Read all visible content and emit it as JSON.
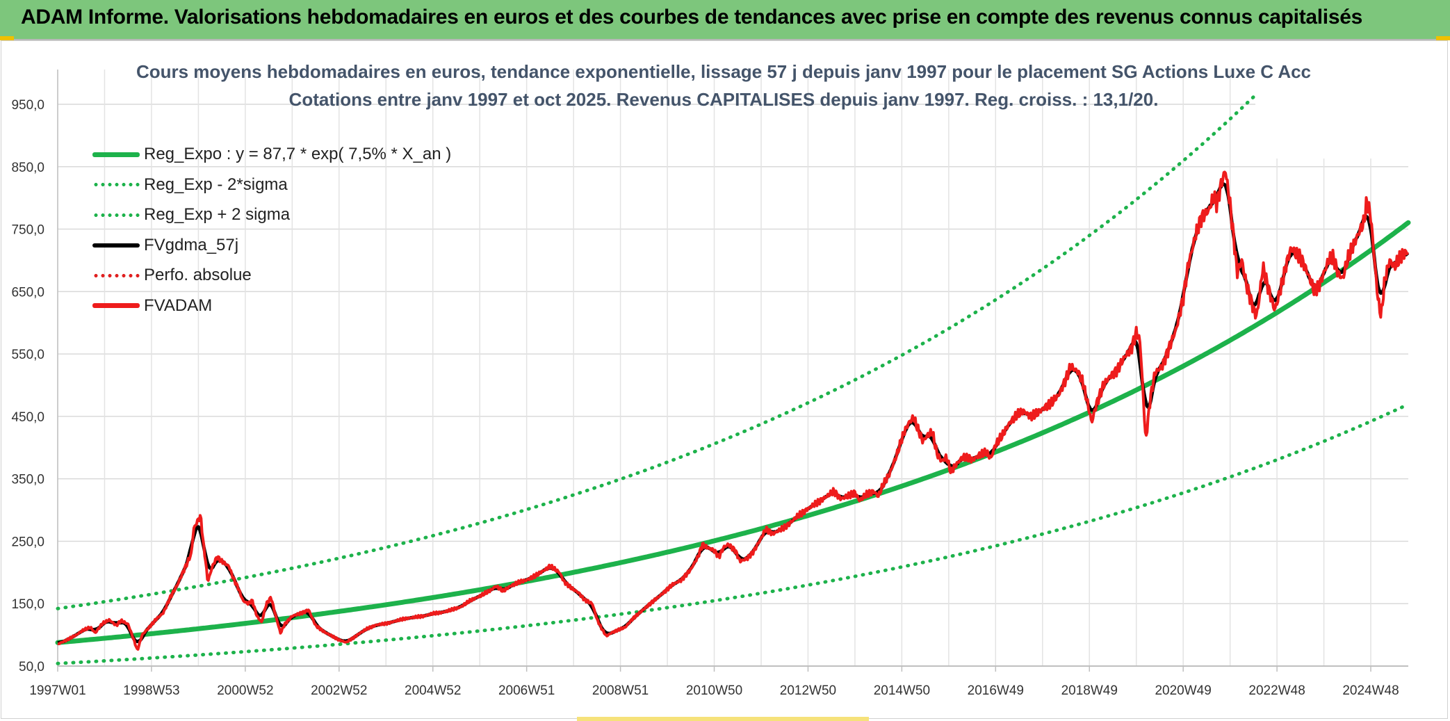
{
  "header": {
    "title": "ADAM Informe. Valorisations hebdomadaires en euros et des courbes de tendances avec prise en compte des revenus connus capitalisés"
  },
  "chart_data": {
    "type": "line",
    "title": "Cours moyens hebdomadaires en euros, tendance exponentielle, lissage 57 j depuis janv 1997 pour le placement SG Actions Luxe C Acc",
    "subtitle": "Cotations entre janv 1997 et oct 2025. Revenus CAPITALISES depuis janv 1997. Reg. croiss. : 13,1/20.",
    "ylim": [
      50,
      1000
    ],
    "y_ticks": [
      "950,0",
      "850,0",
      "750,0",
      "650,0",
      "550,0",
      "450,0",
      "350,0",
      "250,0",
      "150,0",
      "50,0"
    ],
    "y_tick_values": [
      950,
      850,
      750,
      650,
      550,
      450,
      350,
      250,
      150,
      50
    ],
    "x_ticks": [
      "1997W01",
      "1998W53",
      "2000W52",
      "2002W52",
      "2004W52",
      "2006W51",
      "2008W51",
      "2010W50",
      "2012W50",
      "2014W50",
      "2016W49",
      "2018W49",
      "2020W49",
      "2022W48",
      "2024W48"
    ],
    "x_tick_years": [
      1997.0,
      1999.0,
      2001.0,
      2003.0,
      2005.0,
      2007.0,
      2009.0,
      2011.0,
      2013.0,
      2015.0,
      2017.0,
      2019.0,
      2021.0,
      2023.0,
      2025.0
    ],
    "x_range_years": [
      1997.0,
      2025.8
    ],
    "regression": {
      "a": 87.7,
      "b": 0.075,
      "sigma_factor": 1.62
    },
    "legend": [
      {
        "label": "Reg_Expo : y = 87,7 * exp( 7,5% *  X_an )",
        "color": "#1db24b",
        "style": "solid-thick"
      },
      {
        "label": "Reg_Exp - 2*sigma",
        "color": "#1db24b",
        "style": "dotted"
      },
      {
        "label": "Reg_Exp + 2 sigma",
        "color": "#1db24b",
        "style": "dotted"
      },
      {
        "label": "FVgdma_57j",
        "color": "#000000",
        "style": "solid"
      },
      {
        "label": "Perfo. absolue",
        "color": "#e02020",
        "style": "dotted"
      },
      {
        "label": "FVADAM",
        "color": "#ee1c1c",
        "style": "solid-thick"
      }
    ],
    "series": [
      {
        "name": "FVADAM",
        "points": [
          [
            1997.0,
            85
          ],
          [
            1997.2,
            92
          ],
          [
            1997.4,
            100
          ],
          [
            1997.55,
            108
          ],
          [
            1997.7,
            112
          ],
          [
            1997.8,
            103
          ],
          [
            1997.95,
            118
          ],
          [
            1998.1,
            124
          ],
          [
            1998.25,
            115
          ],
          [
            1998.35,
            123
          ],
          [
            1998.5,
            117
          ],
          [
            1998.6,
            97
          ],
          [
            1998.7,
            75
          ],
          [
            1998.8,
            100
          ],
          [
            1998.95,
            112
          ],
          [
            1999.1,
            125
          ],
          [
            1999.25,
            135
          ],
          [
            1999.4,
            160
          ],
          [
            1999.55,
            180
          ],
          [
            1999.7,
            205
          ],
          [
            1999.85,
            230
          ],
          [
            1999.9,
            270
          ],
          [
            2000.0,
            285
          ],
          [
            2000.05,
            290
          ],
          [
            2000.1,
            250
          ],
          [
            2000.15,
            220
          ],
          [
            2000.2,
            185
          ],
          [
            2000.3,
            210
          ],
          [
            2000.4,
            225
          ],
          [
            2000.55,
            215
          ],
          [
            2000.65,
            210
          ],
          [
            2000.75,
            190
          ],
          [
            2000.85,
            175
          ],
          [
            2000.95,
            155
          ],
          [
            2001.05,
            150
          ],
          [
            2001.15,
            155
          ],
          [
            2001.25,
            130
          ],
          [
            2001.35,
            120
          ],
          [
            2001.45,
            150
          ],
          [
            2001.55,
            160
          ],
          [
            2001.65,
            130
          ],
          [
            2001.75,
            103
          ],
          [
            2001.85,
            118
          ],
          [
            2002.0,
            130
          ],
          [
            2002.2,
            135
          ],
          [
            2002.35,
            140
          ],
          [
            2002.5,
            115
          ],
          [
            2002.7,
            104
          ],
          [
            2002.85,
            98
          ],
          [
            2003.0,
            92
          ],
          [
            2003.15,
            88
          ],
          [
            2003.3,
            95
          ],
          [
            2003.45,
            103
          ],
          [
            2003.6,
            110
          ],
          [
            2003.8,
            116
          ],
          [
            2004.0,
            118
          ],
          [
            2004.2,
            122
          ],
          [
            2004.4,
            126
          ],
          [
            2004.6,
            128
          ],
          [
            2004.8,
            130
          ],
          [
            2005.0,
            134
          ],
          [
            2005.2,
            136
          ],
          [
            2005.4,
            140
          ],
          [
            2005.6,
            145
          ],
          [
            2005.8,
            155
          ],
          [
            2006.0,
            162
          ],
          [
            2006.2,
            170
          ],
          [
            2006.35,
            178
          ],
          [
            2006.5,
            170
          ],
          [
            2006.65,
            178
          ],
          [
            2006.8,
            183
          ],
          [
            2007.0,
            188
          ],
          [
            2007.2,
            195
          ],
          [
            2007.4,
            205
          ],
          [
            2007.5,
            210
          ],
          [
            2007.6,
            205
          ],
          [
            2007.7,
            200
          ],
          [
            2007.8,
            185
          ],
          [
            2007.95,
            175
          ],
          [
            2008.1,
            168
          ],
          [
            2008.25,
            155
          ],
          [
            2008.4,
            150
          ],
          [
            2008.5,
            125
          ],
          [
            2008.6,
            110
          ],
          [
            2008.7,
            98
          ],
          [
            2008.8,
            103
          ],
          [
            2008.95,
            108
          ],
          [
            2009.1,
            112
          ],
          [
            2009.25,
            125
          ],
          [
            2009.45,
            138
          ],
          [
            2009.6,
            148
          ],
          [
            2009.8,
            160
          ],
          [
            2009.95,
            170
          ],
          [
            2010.1,
            180
          ],
          [
            2010.3,
            188
          ],
          [
            2010.5,
            205
          ],
          [
            2010.65,
            225
          ],
          [
            2010.75,
            245
          ],
          [
            2010.85,
            240
          ],
          [
            2011.0,
            235
          ],
          [
            2011.1,
            225
          ],
          [
            2011.2,
            240
          ],
          [
            2011.3,
            245
          ],
          [
            2011.45,
            235
          ],
          [
            2011.55,
            218
          ],
          [
            2011.7,
            222
          ],
          [
            2011.85,
            235
          ],
          [
            2012.0,
            255
          ],
          [
            2012.1,
            270
          ],
          [
            2012.25,
            262
          ],
          [
            2012.4,
            268
          ],
          [
            2012.6,
            278
          ],
          [
            2012.8,
            292
          ],
          [
            2013.0,
            302
          ],
          [
            2013.2,
            312
          ],
          [
            2013.4,
            322
          ],
          [
            2013.55,
            330
          ],
          [
            2013.7,
            318
          ],
          [
            2013.85,
            322
          ],
          [
            2014.0,
            328
          ],
          [
            2014.1,
            315
          ],
          [
            2014.25,
            325
          ],
          [
            2014.4,
            330
          ],
          [
            2014.5,
            322
          ],
          [
            2014.6,
            340
          ],
          [
            2014.75,
            360
          ],
          [
            2014.9,
            390
          ],
          [
            2015.05,
            425
          ],
          [
            2015.15,
            440
          ],
          [
            2015.25,
            448
          ],
          [
            2015.35,
            428
          ],
          [
            2015.45,
            410
          ],
          [
            2015.55,
            420
          ],
          [
            2015.65,
            425
          ],
          [
            2015.75,
            390
          ],
          [
            2015.85,
            378
          ],
          [
            2015.95,
            385
          ],
          [
            2016.05,
            360
          ],
          [
            2016.15,
            372
          ],
          [
            2016.3,
            385
          ],
          [
            2016.5,
            380
          ],
          [
            2016.65,
            388
          ],
          [
            2016.8,
            392
          ],
          [
            2016.9,
            383
          ],
          [
            2017.0,
            405
          ],
          [
            2017.15,
            420
          ],
          [
            2017.3,
            440
          ],
          [
            2017.45,
            452
          ],
          [
            2017.6,
            458
          ],
          [
            2017.75,
            450
          ],
          [
            2017.9,
            455
          ],
          [
            2018.05,
            465
          ],
          [
            2018.2,
            472
          ],
          [
            2018.35,
            485
          ],
          [
            2018.5,
            510
          ],
          [
            2018.6,
            530
          ],
          [
            2018.75,
            522
          ],
          [
            2018.85,
            508
          ],
          [
            2018.95,
            475
          ],
          [
            2019.05,
            440
          ],
          [
            2019.15,
            470
          ],
          [
            2019.3,
            500
          ],
          [
            2019.45,
            515
          ],
          [
            2019.6,
            525
          ],
          [
            2019.75,
            545
          ],
          [
            2019.9,
            560
          ],
          [
            2020.0,
            585
          ],
          [
            2020.08,
            570
          ],
          [
            2020.15,
            480
          ],
          [
            2020.2,
            410
          ],
          [
            2020.3,
            480
          ],
          [
            2020.4,
            520
          ],
          [
            2020.55,
            530
          ],
          [
            2020.7,
            560
          ],
          [
            2020.85,
            590
          ],
          [
            2021.0,
            640
          ],
          [
            2021.1,
            690
          ],
          [
            2021.2,
            720
          ],
          [
            2021.3,
            752
          ],
          [
            2021.4,
            770
          ],
          [
            2021.55,
            780
          ],
          [
            2021.65,
            805
          ],
          [
            2021.72,
            790
          ],
          [
            2021.8,
            820
          ],
          [
            2021.9,
            845
          ],
          [
            2022.0,
            790
          ],
          [
            2022.1,
            720
          ],
          [
            2022.15,
            680
          ],
          [
            2022.25,
            700
          ],
          [
            2022.35,
            660
          ],
          [
            2022.45,
            635
          ],
          [
            2022.55,
            610
          ],
          [
            2022.6,
            625
          ],
          [
            2022.7,
            690
          ],
          [
            2022.8,
            660
          ],
          [
            2022.95,
            620
          ],
          [
            2023.05,
            645
          ],
          [
            2023.2,
            695
          ],
          [
            2023.3,
            720
          ],
          [
            2023.4,
            710
          ],
          [
            2023.5,
            705
          ],
          [
            2023.6,
            690
          ],
          [
            2023.7,
            670
          ],
          [
            2023.8,
            650
          ],
          [
            2023.9,
            660
          ],
          [
            2024.0,
            680
          ],
          [
            2024.1,
            700
          ],
          [
            2024.2,
            705
          ],
          [
            2024.3,
            680
          ],
          [
            2024.4,
            670
          ],
          [
            2024.5,
            700
          ],
          [
            2024.6,
            720
          ],
          [
            2024.75,
            745
          ],
          [
            2024.85,
            760
          ],
          [
            2024.92,
            795
          ],
          [
            2025.0,
            770
          ],
          [
            2025.08,
            700
          ],
          [
            2025.15,
            640
          ],
          [
            2025.22,
            610
          ],
          [
            2025.3,
            670
          ],
          [
            2025.4,
            700
          ],
          [
            2025.5,
            690
          ],
          [
            2025.6,
            700
          ],
          [
            2025.7,
            710
          ],
          [
            2025.8,
            715
          ]
        ]
      }
    ]
  }
}
